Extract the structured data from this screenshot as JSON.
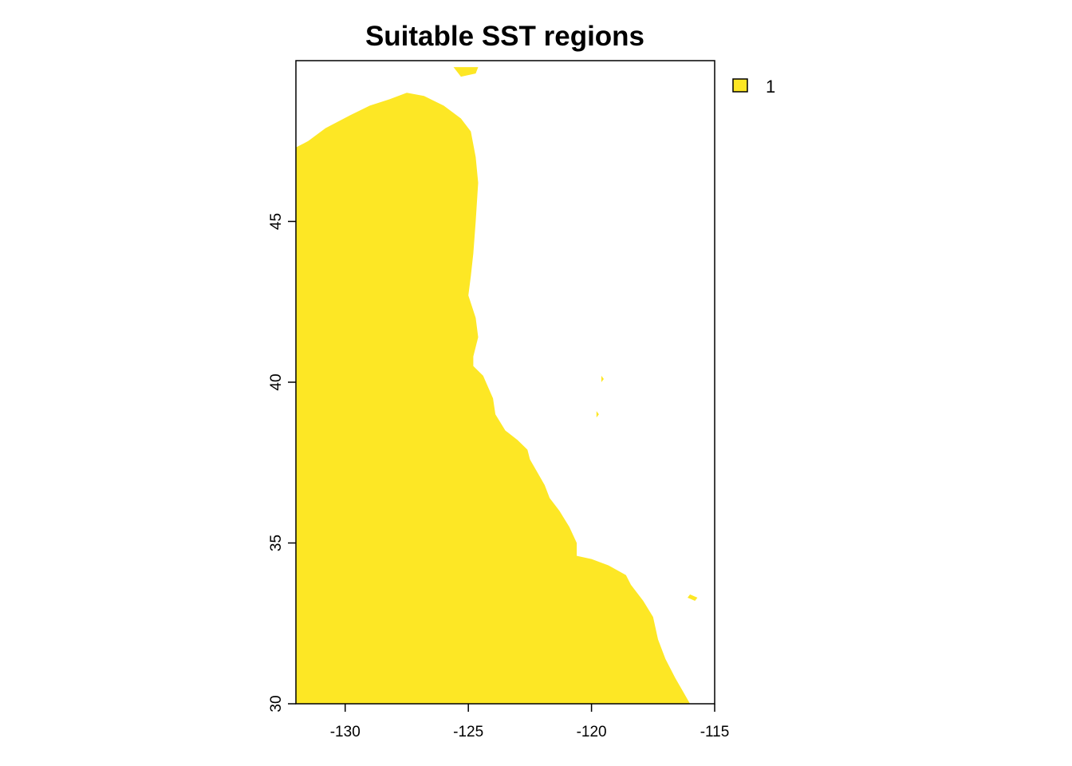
{
  "chart_data": {
    "type": "raster-map",
    "title": "Suitable SST regions",
    "xlabel": "",
    "ylabel": "",
    "xlim": [
      -132,
      -115
    ],
    "ylim": [
      30,
      50
    ],
    "x_ticks": [
      -130,
      -125,
      -120,
      -115
    ],
    "y_ticks": [
      30,
      35,
      40,
      45
    ],
    "legend": {
      "placement": "top-right",
      "entries": [
        {
          "label": "1",
          "color": "#FDE725"
        }
      ]
    },
    "fill_color": "#FDE725",
    "suitable_region_boundary": [
      [
        -132.0,
        30.0
      ],
      [
        -132.0,
        47.3
      ],
      [
        -131.5,
        47.5
      ],
      [
        -130.8,
        47.9
      ],
      [
        -129.8,
        48.3
      ],
      [
        -129.0,
        48.6
      ],
      [
        -128.2,
        48.8
      ],
      [
        -127.5,
        49.0
      ],
      [
        -126.8,
        48.9
      ],
      [
        -126.0,
        48.6
      ],
      [
        -125.3,
        48.2
      ],
      [
        -124.9,
        47.8
      ],
      [
        -124.7,
        47.0
      ],
      [
        -124.6,
        46.2
      ],
      [
        -124.7,
        45.0
      ],
      [
        -124.8,
        44.0
      ],
      [
        -124.9,
        43.3
      ],
      [
        -125.0,
        42.7
      ],
      [
        -124.7,
        42.0
      ],
      [
        -124.6,
        41.4
      ],
      [
        -124.8,
        40.8
      ],
      [
        -124.8,
        40.5
      ],
      [
        -124.4,
        40.2
      ],
      [
        -124.0,
        39.5
      ],
      [
        -123.9,
        39.0
      ],
      [
        -123.5,
        38.5
      ],
      [
        -123.0,
        38.2
      ],
      [
        -122.6,
        37.9
      ],
      [
        -122.5,
        37.6
      ],
      [
        -122.2,
        37.2
      ],
      [
        -121.9,
        36.8
      ],
      [
        -121.7,
        36.4
      ],
      [
        -121.3,
        36.0
      ],
      [
        -120.9,
        35.5
      ],
      [
        -120.6,
        35.0
      ],
      [
        -120.6,
        34.6
      ],
      [
        -120.0,
        34.5
      ],
      [
        -119.3,
        34.3
      ],
      [
        -118.6,
        34.0
      ],
      [
        -118.4,
        33.7
      ],
      [
        -117.9,
        33.2
      ],
      [
        -117.5,
        32.7
      ],
      [
        -117.3,
        32.0
      ],
      [
        -117.0,
        31.4
      ],
      [
        -116.6,
        30.8
      ],
      [
        -116.3,
        30.4
      ],
      [
        -116.0,
        30.0
      ]
    ],
    "islands": [
      [
        [
          -125.6,
          49.8
        ],
        [
          -124.6,
          49.8
        ],
        [
          -124.7,
          49.6
        ],
        [
          -125.3,
          49.5
        ]
      ],
      [
        [
          -116.0,
          33.4
        ],
        [
          -115.7,
          33.3
        ],
        [
          -115.8,
          33.2
        ],
        [
          -116.1,
          33.3
        ]
      ],
      [
        [
          -119.6,
          40.2
        ],
        [
          -119.5,
          40.1
        ],
        [
          -119.6,
          40.0
        ]
      ],
      [
        [
          -119.8,
          39.1
        ],
        [
          -119.7,
          39.0
        ],
        [
          -119.8,
          38.9
        ]
      ]
    ]
  }
}
